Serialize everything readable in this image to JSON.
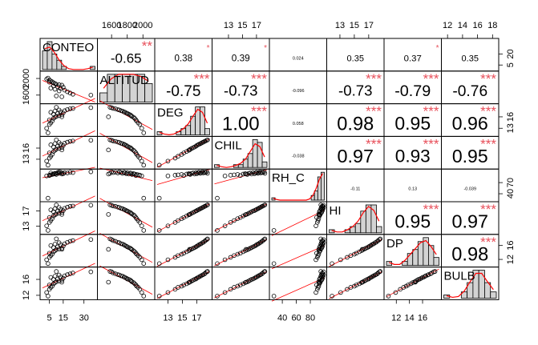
{
  "chart_data": {
    "type": "scatter",
    "title": "",
    "variables": [
      "CONTEO",
      "ALTITUD",
      "DEG",
      "CHIL",
      "RH_C",
      "HI",
      "DP",
      "BULB"
    ],
    "colors": {
      "hist_fill": "#d3d3d3",
      "density_line": "#ff0000",
      "star": "#e8505b",
      "fit_line": "#ff0000",
      "point_stroke": "#000000"
    },
    "ranges": {
      "CONTEO": [
        0,
        38
      ],
      "ALTITUD": [
        1450,
        2120
      ],
      "DEG": [
        11.5,
        18.8
      ],
      "CHIL": [
        11,
        18.5
      ],
      "RH_C": [
        25,
        100
      ],
      "HI": [
        11.5,
        18.8
      ],
      "DP": [
        10.5,
        18.5
      ],
      "BULB": [
        11.5,
        18.5
      ]
    },
    "axis_ticks": {
      "top": [
        {
          "var": "ALTITUD",
          "values": [
            1600,
            1800,
            2000
          ]
        },
        {
          "var": "CHIL",
          "values": [
            13,
            15,
            17
          ]
        },
        {
          "var": "HI",
          "values": [
            13,
            15,
            17
          ]
        },
        {
          "var": "BULB",
          "values": [
            12,
            14,
            16,
            18
          ]
        }
      ],
      "bottom": [
        {
          "var": "CONTEO",
          "values": [
            5,
            15,
            30
          ]
        },
        {
          "var": "DEG",
          "values": [
            13,
            15,
            17
          ]
        },
        {
          "var": "RH_C",
          "values": [
            40,
            60,
            80
          ]
        },
        {
          "var": "DP",
          "values": [
            12,
            14,
            16
          ]
        }
      ],
      "left": [
        {
          "var": "ALTITUD",
          "values": [
            1600,
            2000
          ]
        },
        {
          "var": "CHIL",
          "values": [
            13,
            16
          ]
        },
        {
          "var": "HI",
          "values": [
            13,
            17
          ]
        },
        {
          "var": "BULB",
          "values": [
            12,
            16
          ]
        }
      ],
      "right": [
        {
          "var": "CONTEO",
          "values": [
            5,
            20
          ]
        },
        {
          "var": "DEG",
          "values": [
            13,
            16
          ]
        },
        {
          "var": "RH_C",
          "values": [
            40,
            70
          ]
        },
        {
          "var": "DP",
          "values": [
            12,
            16
          ]
        }
      ]
    },
    "correlations": [
      {
        "row": 0,
        "col": 1,
        "label": "-0.65",
        "stars": "**"
      },
      {
        "row": 0,
        "col": 2,
        "label": "0.38",
        "stars": "*"
      },
      {
        "row": 0,
        "col": 3,
        "label": "0.39",
        "stars": "*"
      },
      {
        "row": 0,
        "col": 4,
        "label": "0.024",
        "stars": ""
      },
      {
        "row": 0,
        "col": 5,
        "label": "0.35",
        "stars": ""
      },
      {
        "row": 0,
        "col": 6,
        "label": "0.37",
        "stars": "*"
      },
      {
        "row": 0,
        "col": 7,
        "label": "0.35",
        "stars": ""
      },
      {
        "row": 1,
        "col": 2,
        "label": "-0.75",
        "stars": "***"
      },
      {
        "row": 1,
        "col": 3,
        "label": "-0.73",
        "stars": "***"
      },
      {
        "row": 1,
        "col": 4,
        "label": "-0.096",
        "stars": ""
      },
      {
        "row": 1,
        "col": 5,
        "label": "-0.73",
        "stars": "***"
      },
      {
        "row": 1,
        "col": 6,
        "label": "-0.79",
        "stars": "***"
      },
      {
        "row": 1,
        "col": 7,
        "label": "-0.76",
        "stars": "***"
      },
      {
        "row": 2,
        "col": 3,
        "label": "1.00",
        "stars": "***"
      },
      {
        "row": 2,
        "col": 4,
        "label": "0.058",
        "stars": ""
      },
      {
        "row": 2,
        "col": 5,
        "label": "0.98",
        "stars": "***"
      },
      {
        "row": 2,
        "col": 6,
        "label": "0.95",
        "stars": "***"
      },
      {
        "row": 2,
        "col": 7,
        "label": "0.96",
        "stars": "***"
      },
      {
        "row": 3,
        "col": 4,
        "label": "-0.038",
        "stars": ""
      },
      {
        "row": 3,
        "col": 5,
        "label": "0.97",
        "stars": "***"
      },
      {
        "row": 3,
        "col": 6,
        "label": "0.93",
        "stars": "***"
      },
      {
        "row": 3,
        "col": 7,
        "label": "0.95",
        "stars": "***"
      },
      {
        "row": 4,
        "col": 5,
        "label": "-0.11",
        "stars": ""
      },
      {
        "row": 4,
        "col": 6,
        "label": "0.13",
        "stars": ""
      },
      {
        "row": 4,
        "col": 7,
        "label": "-0.039",
        "stars": ""
      },
      {
        "row": 5,
        "col": 6,
        "label": "0.95",
        "stars": "***"
      },
      {
        "row": 5,
        "col": 7,
        "label": "0.97",
        "stars": "***"
      },
      {
        "row": 6,
        "col": 7,
        "label": "0.98",
        "stars": "***"
      }
    ],
    "histograms": {
      "CONTEO": [
        6,
        9,
        5,
        3,
        1,
        0,
        0,
        0,
        0,
        0,
        1
      ],
      "ALTITUD": [
        2,
        6,
        6,
        6,
        6,
        6,
        4
      ],
      "DEG": [
        1,
        0,
        0,
        0,
        1,
        2,
        3,
        6,
        9,
        9,
        2
      ],
      "CHIL": [
        1,
        0,
        0,
        0,
        1,
        1,
        3,
        5,
        10,
        9,
        2
      ],
      "RH_C": [
        1,
        0,
        0,
        0,
        0,
        0,
        0,
        0,
        0,
        0,
        0,
        0,
        2,
        4,
        10,
        12
      ],
      "HI": [
        1,
        0,
        0,
        1,
        2,
        3,
        7,
        9,
        9,
        2
      ],
      "DP": [
        1,
        0,
        0,
        1,
        3,
        4,
        6,
        7,
        5,
        2
      ],
      "BULB": [
        1,
        0,
        0,
        2,
        5,
        9,
        9,
        5,
        2
      ]
    },
    "observations": [
      {
        "CONTEO": 4,
        "ALTITUD": 2010,
        "DEG": 11.8,
        "CHIL": 11.4,
        "RH_C": 28,
        "HI": 11.9,
        "DP": 10.8,
        "BULB": 11.8
      },
      {
        "CONTEO": 3,
        "ALTITUD": 1985,
        "DEG": 13.0,
        "CHIL": 12.5,
        "RH_C": 88,
        "HI": 13.1,
        "DP": 11.9,
        "BULB": 12.7
      },
      {
        "CONTEO": 5,
        "ALTITUD": 1960,
        "DEG": 14.0,
        "CHIL": 13.3,
        "RH_C": 90,
        "HI": 14.0,
        "DP": 12.6,
        "BULB": 13.5
      },
      {
        "CONTEO": 6,
        "ALTITUD": 1940,
        "DEG": 14.4,
        "CHIL": 13.8,
        "RH_C": 91,
        "HI": 14.5,
        "DP": 13.1,
        "BULB": 14.0
      },
      {
        "CONTEO": 7,
        "ALTITUD": 1920,
        "DEG": 14.9,
        "CHIL": 14.3,
        "RH_C": 92,
        "HI": 15.0,
        "DP": 13.5,
        "BULB": 14.3
      },
      {
        "CONTEO": 5,
        "ALTITUD": 1910,
        "DEG": 15.2,
        "CHIL": 14.7,
        "RH_C": 89,
        "HI": 15.3,
        "DP": 13.8,
        "BULB": 14.6
      },
      {
        "CONTEO": 8,
        "ALTITUD": 1895,
        "DEG": 15.6,
        "CHIL": 15.1,
        "RH_C": 93,
        "HI": 15.7,
        "DP": 14.2,
        "BULB": 14.9
      },
      {
        "CONTEO": 9,
        "ALTITUD": 1880,
        "DEG": 15.9,
        "CHIL": 15.4,
        "RH_C": 94,
        "HI": 16.0,
        "DP": 14.5,
        "BULB": 15.2
      },
      {
        "CONTEO": 10,
        "ALTITUD": 1860,
        "DEG": 16.1,
        "CHIL": 15.7,
        "RH_C": 92,
        "HI": 16.2,
        "DP": 14.8,
        "BULB": 15.4
      },
      {
        "CONTEO": 12,
        "ALTITUD": 1850,
        "DEG": 16.3,
        "CHIL": 15.9,
        "RH_C": 95,
        "HI": 16.4,
        "DP": 15.0,
        "BULB": 15.6
      },
      {
        "CONTEO": 14,
        "ALTITUD": 1840,
        "DEG": 16.5,
        "CHIL": 16.1,
        "RH_C": 96,
        "HI": 16.6,
        "DP": 15.2,
        "BULB": 15.8
      },
      {
        "CONTEO": 8,
        "ALTITUD": 1820,
        "DEG": 16.7,
        "CHIL": 16.3,
        "RH_C": 93,
        "HI": 16.8,
        "DP": 15.4,
        "BULB": 16.0
      },
      {
        "CONTEO": 11,
        "ALTITUD": 1800,
        "DEG": 16.9,
        "CHIL": 16.5,
        "RH_C": 97,
        "HI": 17.0,
        "DP": 15.6,
        "BULB": 16.1
      },
      {
        "CONTEO": 15,
        "ALTITUD": 1790,
        "DEG": 17.0,
        "CHIL": 16.7,
        "RH_C": 94,
        "HI": 17.1,
        "DP": 15.8,
        "BULB": 16.3
      },
      {
        "CONTEO": 6,
        "ALTITUD": 1770,
        "DEG": 17.2,
        "CHIL": 16.9,
        "RH_C": 96,
        "HI": 17.3,
        "DP": 16.0,
        "BULB": 16.5
      },
      {
        "CONTEO": 13,
        "ALTITUD": 1760,
        "DEG": 17.3,
        "CHIL": 17.0,
        "RH_C": 98,
        "HI": 17.4,
        "DP": 16.2,
        "BULB": 16.6
      },
      {
        "CONTEO": 9,
        "ALTITUD": 1740,
        "DEG": 17.5,
        "CHIL": 17.2,
        "RH_C": 95,
        "HI": 17.6,
        "DP": 16.4,
        "BULB": 16.8
      },
      {
        "CONTEO": 16,
        "ALTITUD": 1720,
        "DEG": 17.6,
        "CHIL": 17.3,
        "RH_C": 97,
        "HI": 17.7,
        "DP": 16.5,
        "BULB": 16.9
      },
      {
        "CONTEO": 12,
        "ALTITUD": 1700,
        "DEG": 17.8,
        "CHIL": 17.5,
        "RH_C": 99,
        "HI": 17.9,
        "DP": 16.8,
        "BULB": 17.1
      },
      {
        "CONTEO": 18,
        "ALTITUD": 1680,
        "DEG": 17.9,
        "CHIL": 17.6,
        "RH_C": 96,
        "HI": 18.0,
        "DP": 16.9,
        "BULB": 17.2
      },
      {
        "CONTEO": 20,
        "ALTITUD": 1650,
        "DEG": 18.1,
        "CHIL": 17.8,
        "RH_C": 98,
        "HI": 18.2,
        "DP": 17.2,
        "BULB": 17.4
      },
      {
        "CONTEO": 22,
        "ALTITUD": 1620,
        "DEG": 18.2,
        "CHIL": 17.9,
        "RH_C": 97,
        "HI": 18.3,
        "DP": 17.4,
        "BULB": 17.6
      },
      {
        "CONTEO": 35,
        "ALTITUD": 1600,
        "DEG": 18.4,
        "CHIL": 18.1,
        "RH_C": 99,
        "HI": 18.5,
        "DP": 17.7,
        "BULB": 17.9
      },
      {
        "CONTEO": 10,
        "ALTITUD": 1580,
        "DEG": 18.5,
        "CHIL": 18.2,
        "RH_C": 95,
        "HI": 18.6,
        "DP": 17.9,
        "BULB": 18.0
      },
      {
        "CONTEO": 14,
        "ALTITUD": 1560,
        "DEG": 16.0,
        "CHIL": 15.5,
        "RH_C": 93,
        "HI": 16.1,
        "DP": 14.9,
        "BULB": 15.3
      }
    ]
  }
}
